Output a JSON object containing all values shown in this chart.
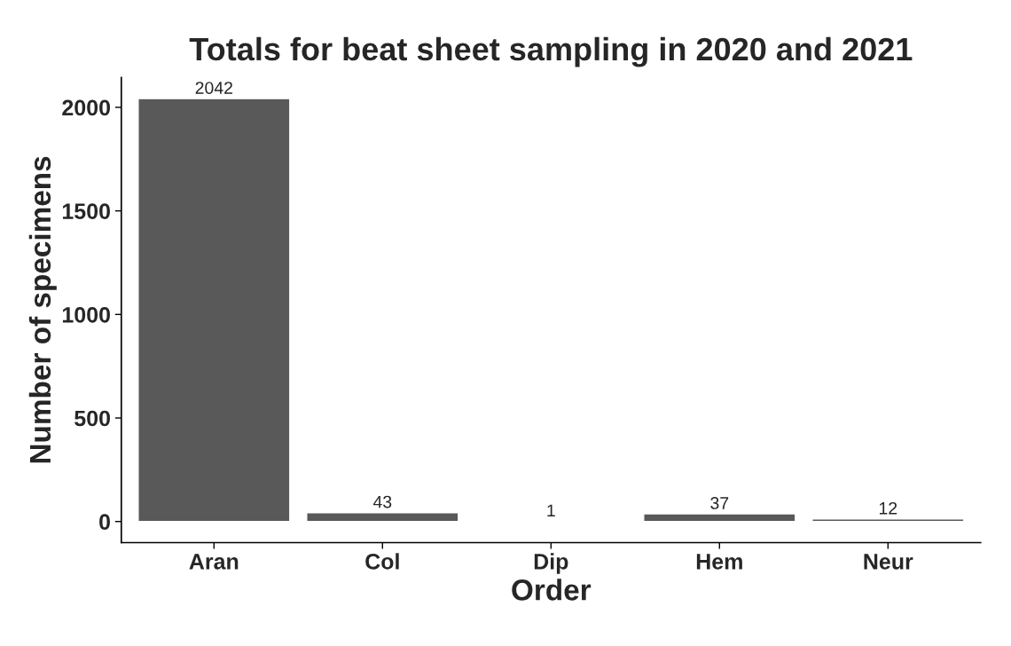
{
  "chart_data": {
    "type": "bar",
    "title": "Totals for beat sheet sampling in 2020 and 2021",
    "xlabel": "Order",
    "ylabel": "Number of specimens",
    "categories": [
      "Aran",
      "Col",
      "Dip",
      "Hem",
      "Neur"
    ],
    "values": [
      2042,
      43,
      1,
      37,
      12
    ],
    "color": "#595959",
    "ylim": [
      -102,
      2144
    ],
    "yticks": [
      0,
      500,
      1000,
      1500,
      2000
    ],
    "data_labels": true,
    "grid": false,
    "legend": false
  }
}
